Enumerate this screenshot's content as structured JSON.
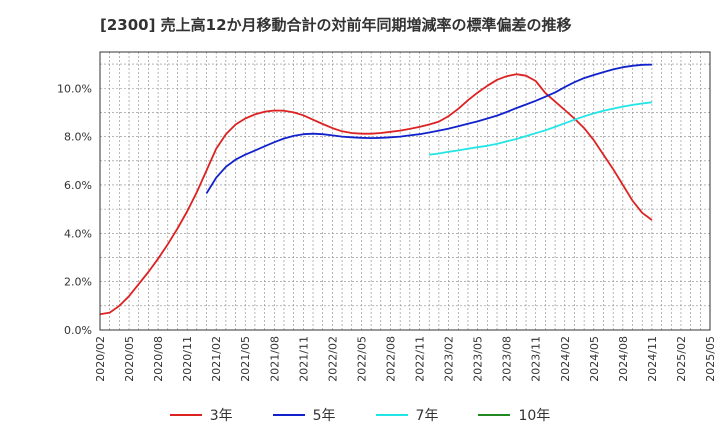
{
  "title": "[2300]  売上高12か月移動合計の対前年同期増減率の標準偏差の推移",
  "chart_data": {
    "type": "line",
    "title": "[2300]  売上高12か月移動合計の対前年同期増減率の標準偏差の推移",
    "xlabel": "",
    "ylabel": "",
    "grid": true,
    "legend_position": "bottom",
    "ylim": [
      0,
      11.5
    ],
    "yticks": [
      0,
      2,
      4,
      6,
      8,
      10
    ],
    "ytick_labels": [
      "0.0%",
      "2.0%",
      "4.0%",
      "6.0%",
      "8.0%",
      "10.0%"
    ],
    "x_start": "2020-02",
    "x_end": "2025-05",
    "xtick_labels": [
      "2020/02",
      "2020/05",
      "2020/08",
      "2020/11",
      "2021/02",
      "2021/05",
      "2021/08",
      "2021/11",
      "2022/02",
      "2022/05",
      "2022/08",
      "2022/11",
      "2023/02",
      "2023/05",
      "2023/08",
      "2023/11",
      "2024/02",
      "2024/05",
      "2024/08",
      "2024/11",
      "2025/02",
      "2025/05"
    ],
    "series": [
      {
        "name": "3年",
        "color": "#dd2222",
        "points": [
          [
            "2020-02",
            0.65
          ],
          [
            "2020-03",
            0.72
          ],
          [
            "2020-04",
            1.0
          ],
          [
            "2020-05",
            1.4
          ],
          [
            "2020-06",
            1.9
          ],
          [
            "2020-07",
            2.4
          ],
          [
            "2020-08",
            2.95
          ],
          [
            "2020-09",
            3.55
          ],
          [
            "2020-10",
            4.2
          ],
          [
            "2020-11",
            4.9
          ],
          [
            "2020-12",
            5.7
          ],
          [
            "2021-01",
            6.6
          ],
          [
            "2021-02",
            7.5
          ],
          [
            "2021-03",
            8.1
          ],
          [
            "2021-04",
            8.5
          ],
          [
            "2021-05",
            8.75
          ],
          [
            "2021-06",
            8.92
          ],
          [
            "2021-07",
            9.03
          ],
          [
            "2021-08",
            9.08
          ],
          [
            "2021-09",
            9.07
          ],
          [
            "2021-10",
            9.0
          ],
          [
            "2021-11",
            8.88
          ],
          [
            "2021-12",
            8.7
          ],
          [
            "2022-01",
            8.52
          ],
          [
            "2022-02",
            8.35
          ],
          [
            "2022-03",
            8.22
          ],
          [
            "2022-04",
            8.15
          ],
          [
            "2022-05",
            8.12
          ],
          [
            "2022-06",
            8.12
          ],
          [
            "2022-07",
            8.15
          ],
          [
            "2022-08",
            8.2
          ],
          [
            "2022-09",
            8.25
          ],
          [
            "2022-10",
            8.32
          ],
          [
            "2022-11",
            8.4
          ],
          [
            "2022-12",
            8.5
          ],
          [
            "2023-01",
            8.62
          ],
          [
            "2023-02",
            8.85
          ],
          [
            "2023-03",
            9.15
          ],
          [
            "2023-04",
            9.5
          ],
          [
            "2023-05",
            9.82
          ],
          [
            "2023-06",
            10.1
          ],
          [
            "2023-07",
            10.35
          ],
          [
            "2023-08",
            10.5
          ],
          [
            "2023-09",
            10.58
          ],
          [
            "2023-10",
            10.52
          ],
          [
            "2023-11",
            10.3
          ],
          [
            "2023-12",
            9.8
          ],
          [
            "2024-01",
            9.45
          ],
          [
            "2024-02",
            9.1
          ],
          [
            "2024-03",
            8.75
          ],
          [
            "2024-04",
            8.35
          ],
          [
            "2024-05",
            7.85
          ],
          [
            "2024-06",
            7.25
          ],
          [
            "2024-07",
            6.65
          ],
          [
            "2024-08",
            6.0
          ],
          [
            "2024-09",
            5.35
          ],
          [
            "2024-10",
            4.85
          ],
          [
            "2024-11",
            4.55
          ]
        ]
      },
      {
        "name": "5年",
        "color": "#1122cc",
        "points": [
          [
            "2021-01",
            5.65
          ],
          [
            "2021-02",
            6.3
          ],
          [
            "2021-03",
            6.75
          ],
          [
            "2021-04",
            7.05
          ],
          [
            "2021-05",
            7.25
          ],
          [
            "2021-06",
            7.42
          ],
          [
            "2021-07",
            7.6
          ],
          [
            "2021-08",
            7.77
          ],
          [
            "2021-09",
            7.92
          ],
          [
            "2021-10",
            8.03
          ],
          [
            "2021-11",
            8.1
          ],
          [
            "2021-12",
            8.12
          ],
          [
            "2022-01",
            8.1
          ],
          [
            "2022-02",
            8.05
          ],
          [
            "2022-03",
            8.0
          ],
          [
            "2022-04",
            7.97
          ],
          [
            "2022-05",
            7.95
          ],
          [
            "2022-06",
            7.94
          ],
          [
            "2022-07",
            7.95
          ],
          [
            "2022-08",
            7.97
          ],
          [
            "2022-09",
            8.0
          ],
          [
            "2022-10",
            8.05
          ],
          [
            "2022-11",
            8.1
          ],
          [
            "2022-12",
            8.17
          ],
          [
            "2023-01",
            8.25
          ],
          [
            "2023-02",
            8.33
          ],
          [
            "2023-03",
            8.43
          ],
          [
            "2023-04",
            8.53
          ],
          [
            "2023-05",
            8.63
          ],
          [
            "2023-06",
            8.75
          ],
          [
            "2023-07",
            8.87
          ],
          [
            "2023-08",
            9.02
          ],
          [
            "2023-09",
            9.18
          ],
          [
            "2023-10",
            9.33
          ],
          [
            "2023-11",
            9.48
          ],
          [
            "2023-12",
            9.65
          ],
          [
            "2024-01",
            9.83
          ],
          [
            "2024-02",
            10.05
          ],
          [
            "2024-03",
            10.25
          ],
          [
            "2024-04",
            10.42
          ],
          [
            "2024-05",
            10.55
          ],
          [
            "2024-06",
            10.67
          ],
          [
            "2024-07",
            10.78
          ],
          [
            "2024-08",
            10.87
          ],
          [
            "2024-09",
            10.93
          ],
          [
            "2024-10",
            10.97
          ],
          [
            "2024-11",
            10.98
          ]
        ]
      },
      {
        "name": "7年",
        "color": "#22e5e5",
        "points": [
          [
            "2022-12",
            7.25
          ],
          [
            "2023-01",
            7.3
          ],
          [
            "2023-02",
            7.37
          ],
          [
            "2023-03",
            7.43
          ],
          [
            "2023-04",
            7.5
          ],
          [
            "2023-05",
            7.56
          ],
          [
            "2023-06",
            7.62
          ],
          [
            "2023-07",
            7.7
          ],
          [
            "2023-08",
            7.8
          ],
          [
            "2023-09",
            7.9
          ],
          [
            "2023-10",
            8.02
          ],
          [
            "2023-11",
            8.14
          ],
          [
            "2023-12",
            8.26
          ],
          [
            "2024-01",
            8.4
          ],
          [
            "2024-02",
            8.55
          ],
          [
            "2024-03",
            8.7
          ],
          [
            "2024-04",
            8.84
          ],
          [
            "2024-05",
            8.96
          ],
          [
            "2024-06",
            9.07
          ],
          [
            "2024-07",
            9.16
          ],
          [
            "2024-08",
            9.24
          ],
          [
            "2024-09",
            9.31
          ],
          [
            "2024-10",
            9.37
          ],
          [
            "2024-11",
            9.42
          ]
        ]
      },
      {
        "name": "10年",
        "color": "#228822",
        "points": []
      }
    ]
  }
}
